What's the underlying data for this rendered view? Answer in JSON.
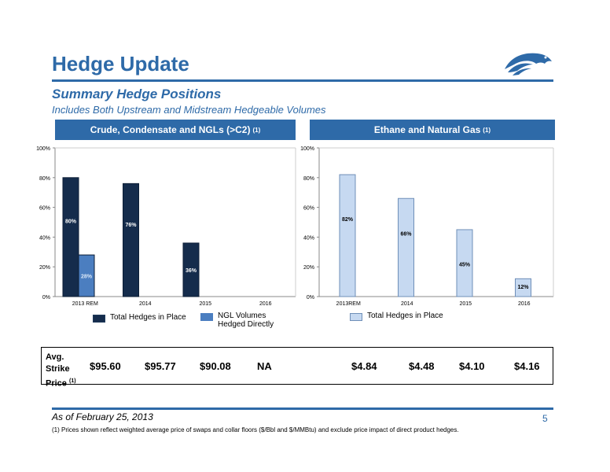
{
  "header": {
    "title": "Hedge Update",
    "subtitle": "Summary Hedge Positions",
    "subtitle2": "Includes Both Upstream and Midstream Hedgeable Volumes"
  },
  "panels": {
    "left_title": "Crude, Condensate and NGLs (>C2)",
    "left_note": "(1)",
    "right_title": "Ethane and Natural Gas",
    "right_note": "(1)"
  },
  "chart_data": [
    {
      "type": "bar",
      "categories": [
        "2013 REM",
        "2014",
        "2015",
        "2016"
      ],
      "series": [
        {
          "name": "Total Hedges in Place",
          "values": [
            80,
            76,
            36,
            null
          ],
          "labels": [
            "80%",
            "76%",
            "36%",
            ""
          ],
          "color": "#152c4c"
        },
        {
          "name": "NGL Volumes Hedged Directly",
          "values": [
            28,
            null,
            null,
            null
          ],
          "labels": [
            "28%",
            "",
            "",
            ""
          ],
          "color": "#4b7ec0"
        }
      ],
      "yticks": [
        "0%",
        "20%",
        "40%",
        "60%",
        "80%",
        "100%"
      ],
      "ylim": [
        0,
        100
      ],
      "grid": false,
      "legend": "bottom"
    },
    {
      "type": "bar",
      "categories": [
        "2013REM",
        "2014",
        "2015",
        "2016"
      ],
      "series": [
        {
          "name": "Total Hedges in Place",
          "values": [
            82,
            66,
            45,
            12
          ],
          "labels": [
            "82%",
            "66%",
            "45%",
            "12%"
          ],
          "color": "#c6d9f1"
        }
      ],
      "yticks": [
        "0%",
        "20%",
        "40%",
        "60%",
        "80%",
        "100%"
      ],
      "ylim": [
        0,
        100
      ],
      "grid": false,
      "legend": "bottom"
    }
  ],
  "legend": {
    "left_1": "Total Hedges in Place",
    "left_2_line1": "NGL Volumes",
    "left_2_line2": "Hedged Directly",
    "right_1": "Total Hedges in Place"
  },
  "strike": {
    "label_line1": "Avg.",
    "label_line2": "Strike",
    "label_line3": "Price",
    "label_note": "(1)",
    "prices": [
      "$95.60",
      "$95.77",
      "$90.08",
      "NA",
      "$4.84",
      "$4.48",
      "$4.10",
      "$4.16"
    ]
  },
  "footer": {
    "as_of": "As of February 25, 2013",
    "page_number": "5",
    "footnote": "(1)   Prices shown reflect weighted average price of swaps and collar floors ($/Bbl and $/MMBtu) and exclude price impact of direct product hedges."
  },
  "colors": {
    "brand_blue": "#2e6aa8",
    "dark_navy": "#152c4c",
    "mid_blue": "#4b7ec0",
    "light_blue": "#c6d9f1"
  }
}
